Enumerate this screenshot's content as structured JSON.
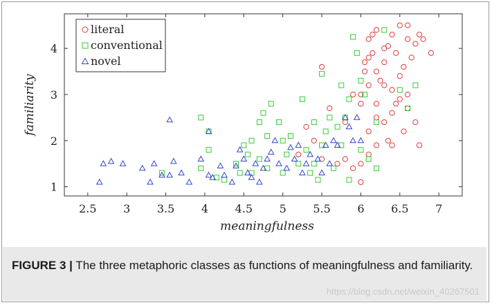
{
  "colors": {
    "literal": "#e03a3a",
    "conventional": "#33cc33",
    "novel": "#3344cc"
  },
  "caption": {
    "label": "FIGURE 3 |",
    "text": " The three metaphoric classes as functions of meaningfulness and familiarity."
  },
  "watermark": "https://blog.csdn.net/weixin_40267501",
  "chart_data": {
    "type": "scatter",
    "title": "",
    "xlabel": "meaningfulness",
    "ylabel": "familiarity",
    "xlim": [
      2.2,
      7.3
    ],
    "ylim": [
      0.8,
      4.75
    ],
    "xticks": [
      "2.5",
      "3",
      "3.5",
      "4",
      "4.5",
      "5",
      "5.5",
      "6",
      "6.5",
      "7"
    ],
    "yticks": [
      "1",
      "2",
      "3",
      "4"
    ],
    "legend_position": "top-left",
    "series": [
      {
        "name": "literal",
        "marker": "circle",
        "points": [
          [
            5.3,
            2.3
          ],
          [
            5.4,
            2.0
          ],
          [
            5.2,
            1.7
          ],
          [
            5.5,
            1.6
          ],
          [
            5.5,
            3.6
          ],
          [
            5.6,
            2.7
          ],
          [
            5.7,
            1.5
          ],
          [
            5.8,
            1.6
          ],
          [
            5.8,
            2.4
          ],
          [
            5.9,
            3.0
          ],
          [
            5.9,
            1.4
          ],
          [
            6.0,
            1.1
          ],
          [
            6.0,
            1.5
          ],
          [
            6.0,
            2.8
          ],
          [
            6.0,
            3.0
          ],
          [
            6.05,
            3.5
          ],
          [
            6.1,
            3.2
          ],
          [
            6.1,
            2.2
          ],
          [
            6.1,
            1.7
          ],
          [
            6.1,
            4.2
          ],
          [
            6.15,
            3.9
          ],
          [
            6.2,
            3.5
          ],
          [
            6.2,
            2.5
          ],
          [
            6.2,
            1.9
          ],
          [
            6.2,
            4.4
          ],
          [
            6.3,
            2.4
          ],
          [
            6.3,
            3.7
          ],
          [
            6.3,
            3.2
          ],
          [
            6.3,
            4.0
          ],
          [
            6.35,
            2.0
          ],
          [
            6.4,
            4.3
          ],
          [
            6.4,
            3.1
          ],
          [
            6.4,
            2.6
          ],
          [
            6.4,
            1.9
          ],
          [
            6.45,
            3.9
          ],
          [
            6.5,
            3.4
          ],
          [
            6.5,
            2.9
          ],
          [
            6.5,
            4.5
          ],
          [
            6.55,
            3.6
          ],
          [
            6.55,
            2.2
          ],
          [
            6.6,
            4.2
          ],
          [
            6.6,
            3.0
          ],
          [
            6.6,
            2.7
          ],
          [
            6.65,
            3.8
          ],
          [
            6.7,
            4.1
          ],
          [
            6.7,
            2.4
          ],
          [
            6.75,
            4.3
          ],
          [
            6.8,
            4.2
          ],
          [
            6.9,
            3.9
          ],
          [
            6.75,
            1.9
          ],
          [
            6.1,
            3.8
          ],
          [
            6.15,
            4.3
          ],
          [
            6.25,
            3.3
          ],
          [
            6.35,
            4.05
          ],
          [
            6.45,
            2.8
          ],
          [
            6.6,
            4.5
          ],
          [
            6.2,
            2.8
          ],
          [
            6.05,
            3.7
          ]
        ]
      },
      {
        "name": "conventional",
        "marker": "square",
        "points": [
          [
            3.45,
            1.3
          ],
          [
            3.95,
            1.4
          ],
          [
            4.05,
            1.8
          ],
          [
            3.95,
            2.5
          ],
          [
            4.05,
            2.2
          ],
          [
            4.15,
            1.2
          ],
          [
            4.25,
            1.15
          ],
          [
            4.4,
            1.5
          ],
          [
            4.45,
            1.3
          ],
          [
            4.5,
            1.9
          ],
          [
            4.55,
            1.7
          ],
          [
            4.6,
            2.0
          ],
          [
            4.6,
            1.3
          ],
          [
            4.7,
            1.6
          ],
          [
            4.7,
            2.4
          ],
          [
            4.75,
            2.6
          ],
          [
            4.8,
            2.1
          ],
          [
            4.8,
            1.4
          ],
          [
            4.85,
            2.8
          ],
          [
            4.95,
            2.4
          ],
          [
            5.0,
            1.3
          ],
          [
            5.0,
            2.0
          ],
          [
            5.05,
            1.7
          ],
          [
            5.1,
            2.1
          ],
          [
            5.2,
            1.5
          ],
          [
            5.25,
            2.9
          ],
          [
            5.3,
            1.8
          ],
          [
            5.35,
            1.3
          ],
          [
            5.4,
            1.5
          ],
          [
            5.4,
            2.4
          ],
          [
            5.45,
            1.15
          ],
          [
            5.5,
            3.45
          ],
          [
            5.5,
            1.9
          ],
          [
            5.6,
            2.5
          ],
          [
            5.65,
            1.4
          ],
          [
            5.7,
            2.3
          ],
          [
            5.75,
            1.9
          ],
          [
            5.75,
            3.2
          ],
          [
            5.8,
            2.5
          ],
          [
            5.85,
            1.15
          ],
          [
            5.85,
            2.9
          ],
          [
            5.9,
            4.25
          ],
          [
            5.95,
            3.9
          ],
          [
            6.0,
            3.3
          ],
          [
            6.05,
            3.0
          ],
          [
            6.1,
            1.6
          ],
          [
            6.2,
            1.4
          ],
          [
            6.2,
            2.4
          ],
          [
            6.3,
            4.4
          ],
          [
            6.5,
            3.1
          ],
          [
            6.6,
            2.7
          ],
          [
            6.7,
            3.2
          ],
          [
            6.0,
            1.8
          ],
          [
            5.55,
            2.2
          ]
        ]
      },
      {
        "name": "novel",
        "marker": "triangle",
        "points": [
          [
            2.65,
            1.1
          ],
          [
            2.7,
            1.5
          ],
          [
            2.8,
            1.55
          ],
          [
            2.95,
            1.5
          ],
          [
            3.2,
            1.4
          ],
          [
            3.3,
            1.1
          ],
          [
            3.35,
            1.5
          ],
          [
            3.45,
            1.25
          ],
          [
            3.55,
            1.25
          ],
          [
            3.6,
            1.55
          ],
          [
            3.7,
            1.3
          ],
          [
            3.8,
            1.1
          ],
          [
            3.95,
            1.6
          ],
          [
            4.05,
            1.25
          ],
          [
            4.1,
            1.2
          ],
          [
            4.2,
            1.45
          ],
          [
            4.25,
            1.25
          ],
          [
            4.35,
            1.1
          ],
          [
            4.4,
            1.45
          ],
          [
            4.5,
            1.6
          ],
          [
            4.55,
            1.3
          ],
          [
            4.6,
            1.2
          ],
          [
            4.65,
            1.5
          ],
          [
            4.7,
            1.1
          ],
          [
            4.75,
            1.4
          ],
          [
            4.8,
            1.6
          ],
          [
            4.85,
            1.75
          ],
          [
            4.9,
            2.0
          ],
          [
            4.95,
            1.5
          ],
          [
            5.05,
            1.4
          ],
          [
            5.1,
            1.85
          ],
          [
            5.15,
            1.6
          ],
          [
            5.2,
            1.9
          ],
          [
            5.25,
            1.3
          ],
          [
            5.3,
            1.5
          ],
          [
            5.35,
            1.7
          ],
          [
            5.45,
            1.6
          ],
          [
            5.5,
            1.3
          ],
          [
            5.55,
            1.9
          ],
          [
            5.6,
            1.5
          ],
          [
            5.65,
            2.0
          ],
          [
            5.7,
            1.9
          ],
          [
            5.8,
            2.5
          ],
          [
            5.85,
            2.3
          ],
          [
            5.9,
            2.0
          ],
          [
            5.95,
            2.5
          ],
          [
            6.0,
            2.0
          ],
          [
            3.55,
            2.45
          ],
          [
            4.05,
            2.2
          ],
          [
            4.45,
            1.8
          ]
        ]
      }
    ]
  }
}
